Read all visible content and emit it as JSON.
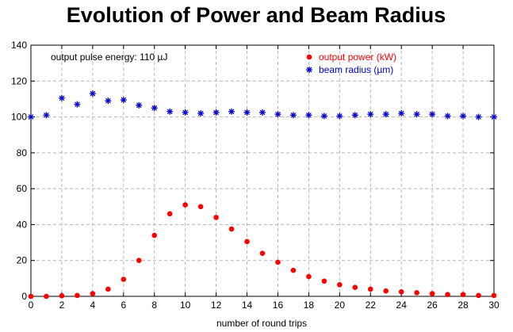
{
  "colors": {
    "power": "#ff0000",
    "radius": "#0000cc",
    "grid": "#b8b8b8",
    "axis": "#000000"
  },
  "chart_data": {
    "type": "scatter",
    "title": "Evolution of Power and Beam Radius",
    "xlabel": "number of round trips",
    "ylabel": "",
    "xlim": [
      0,
      30
    ],
    "ylim": [
      0,
      140
    ],
    "xticks": [
      0,
      2,
      4,
      6,
      8,
      10,
      12,
      14,
      16,
      18,
      20,
      22,
      24,
      26,
      28,
      30
    ],
    "yticks": [
      0,
      20,
      40,
      60,
      80,
      100,
      120,
      140
    ],
    "grid": true,
    "annotation": "output pulse energy: 110 µJ",
    "legend_position": "top-right",
    "series": [
      {
        "name": "output power (kW)",
        "marker": "dot",
        "color": "#ff0000",
        "x": [
          0,
          1,
          2,
          3,
          4,
          5,
          6,
          7,
          8,
          9,
          10,
          11,
          12,
          13,
          14,
          15,
          16,
          17,
          18,
          19,
          20,
          21,
          22,
          23,
          24,
          25,
          26,
          27,
          28,
          29,
          30
        ],
        "values": [
          0,
          0,
          0.3,
          0.5,
          1.5,
          4,
          9.5,
          20,
          34,
          46,
          51,
          50,
          44,
          37.5,
          30.5,
          24,
          19,
          14.5,
          11,
          8.5,
          6.5,
          5,
          4,
          3,
          2.5,
          2,
          1.5,
          1,
          1,
          0.5,
          0.5
        ]
      },
      {
        "name": "beam radius (µm)",
        "marker": "star",
        "color": "#0000cc",
        "x": [
          0,
          1,
          2,
          3,
          4,
          5,
          6,
          7,
          8,
          9,
          10,
          11,
          12,
          13,
          14,
          15,
          16,
          17,
          18,
          19,
          20,
          21,
          22,
          23,
          24,
          25,
          26,
          27,
          28,
          29,
          30
        ],
        "values": [
          100,
          101,
          110.5,
          107,
          113,
          109,
          109.5,
          106.5,
          105,
          103,
          102.5,
          102,
          102.5,
          103,
          102.5,
          102.5,
          101.5,
          101,
          101,
          100.5,
          100.5,
          101,
          101.5,
          101.5,
          102,
          101.5,
          101.5,
          100.5,
          100.5,
          100,
          100
        ]
      }
    ]
  }
}
